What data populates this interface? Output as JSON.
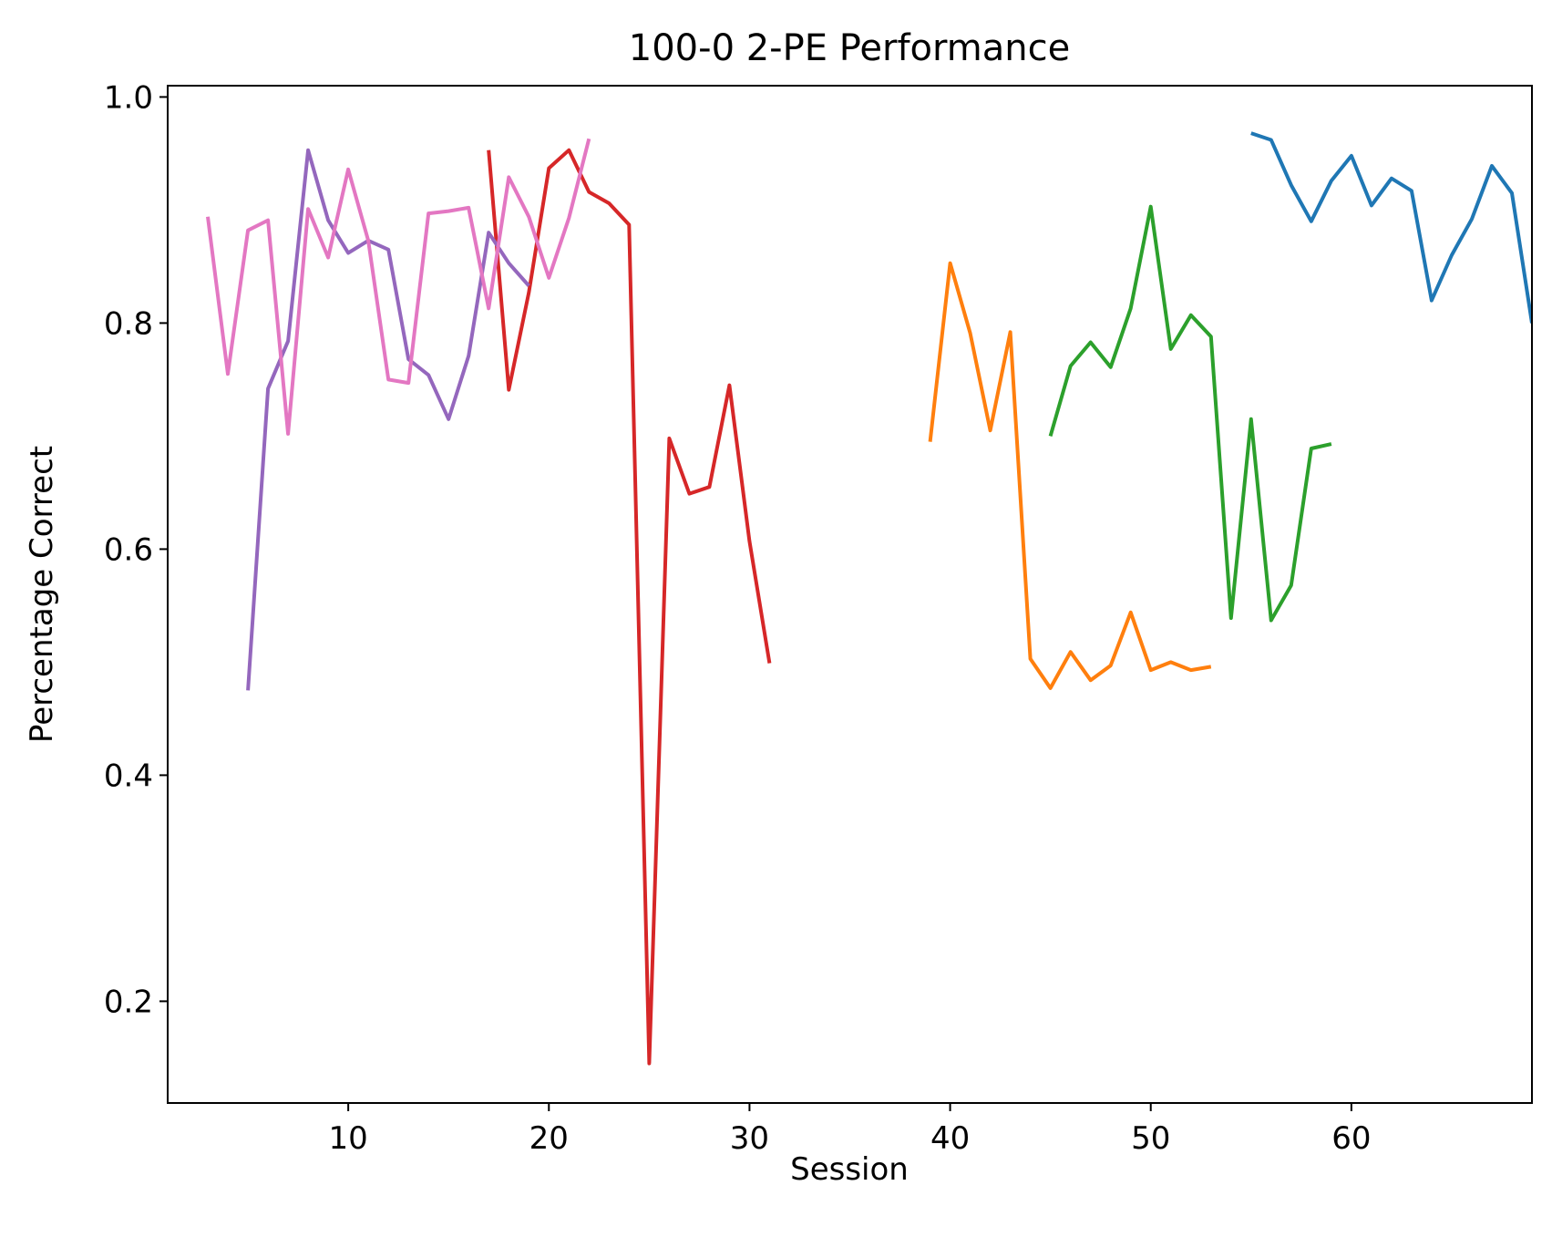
{
  "chart_data": {
    "type": "line",
    "title": "100-0 2-PE Performance",
    "xlabel": "Session",
    "ylabel": "Percentage Correct",
    "xlim": [
      1,
      69
    ],
    "ylim": [
      0.11,
      1.01
    ],
    "xticks": [
      10,
      20,
      30,
      40,
      50,
      60
    ],
    "yticks": [
      0.2,
      0.4,
      0.6,
      0.8,
      1.0
    ],
    "xtick_labels": [
      "10",
      "20",
      "30",
      "40",
      "50",
      "60"
    ],
    "ytick_labels": [
      "0.2",
      "0.4",
      "0.6",
      "0.8",
      "1.0"
    ],
    "grid": false,
    "legend": "none",
    "series": [
      {
        "color": "#1f77b4",
        "x": [
          55,
          56,
          57,
          58,
          59,
          60,
          61,
          62,
          63,
          64,
          65,
          66,
          67,
          68,
          69
        ],
        "y": [
          0.968,
          0.962,
          0.922,
          0.89,
          0.926,
          0.948,
          0.904,
          0.928,
          0.917,
          0.82,
          0.86,
          0.892,
          0.939,
          0.915,
          0.8
        ]
      },
      {
        "color": "#ff7f0e",
        "x": [
          39,
          40,
          41,
          42,
          43,
          44,
          45,
          46,
          47,
          48,
          49,
          50,
          51,
          52,
          53
        ],
        "y": [
          0.695,
          0.853,
          0.791,
          0.705,
          0.792,
          0.503,
          0.477,
          0.509,
          0.484,
          0.497,
          0.544,
          0.493,
          0.5,
          0.493,
          0.496
        ]
      },
      {
        "color": "#2ca02c",
        "x": [
          45,
          46,
          47,
          48,
          49,
          50,
          51,
          52,
          53,
          54,
          55,
          56,
          57,
          58,
          59
        ],
        "y": [
          0.7,
          0.762,
          0.783,
          0.761,
          0.813,
          0.903,
          0.777,
          0.807,
          0.788,
          0.539,
          0.715,
          0.537,
          0.568,
          0.689,
          0.693
        ]
      },
      {
        "color": "#d62728",
        "x": [
          17,
          18,
          19,
          20,
          21,
          22,
          23,
          24,
          25,
          26,
          27,
          28,
          29,
          30,
          31
        ],
        "y": [
          0.953,
          0.741,
          0.827,
          0.937,
          0.953,
          0.916,
          0.906,
          0.887,
          0.145,
          0.698,
          0.649,
          0.655,
          0.745,
          0.607,
          0.499
        ]
      },
      {
        "color": "#9467bd",
        "x": [
          5,
          6,
          7,
          8,
          9,
          10,
          11,
          12,
          13,
          14,
          15,
          16,
          17,
          18,
          19
        ],
        "y": [
          0.475,
          0.742,
          0.784,
          0.953,
          0.891,
          0.862,
          0.873,
          0.865,
          0.768,
          0.754,
          0.715,
          0.771,
          0.88,
          0.853,
          0.833
        ]
      },
      {
        "color": "#e377c2",
        "x": [
          3,
          4,
          5,
          6,
          7,
          8,
          9,
          10,
          11,
          12,
          13,
          14,
          15,
          16,
          17,
          18,
          19,
          20,
          21,
          22
        ],
        "y": [
          0.894,
          0.755,
          0.882,
          0.891,
          0.702,
          0.901,
          0.858,
          0.936,
          0.873,
          0.75,
          0.747,
          0.897,
          0.899,
          0.902,
          0.813,
          0.929,
          0.894,
          0.84,
          0.893,
          0.963
        ]
      }
    ]
  }
}
